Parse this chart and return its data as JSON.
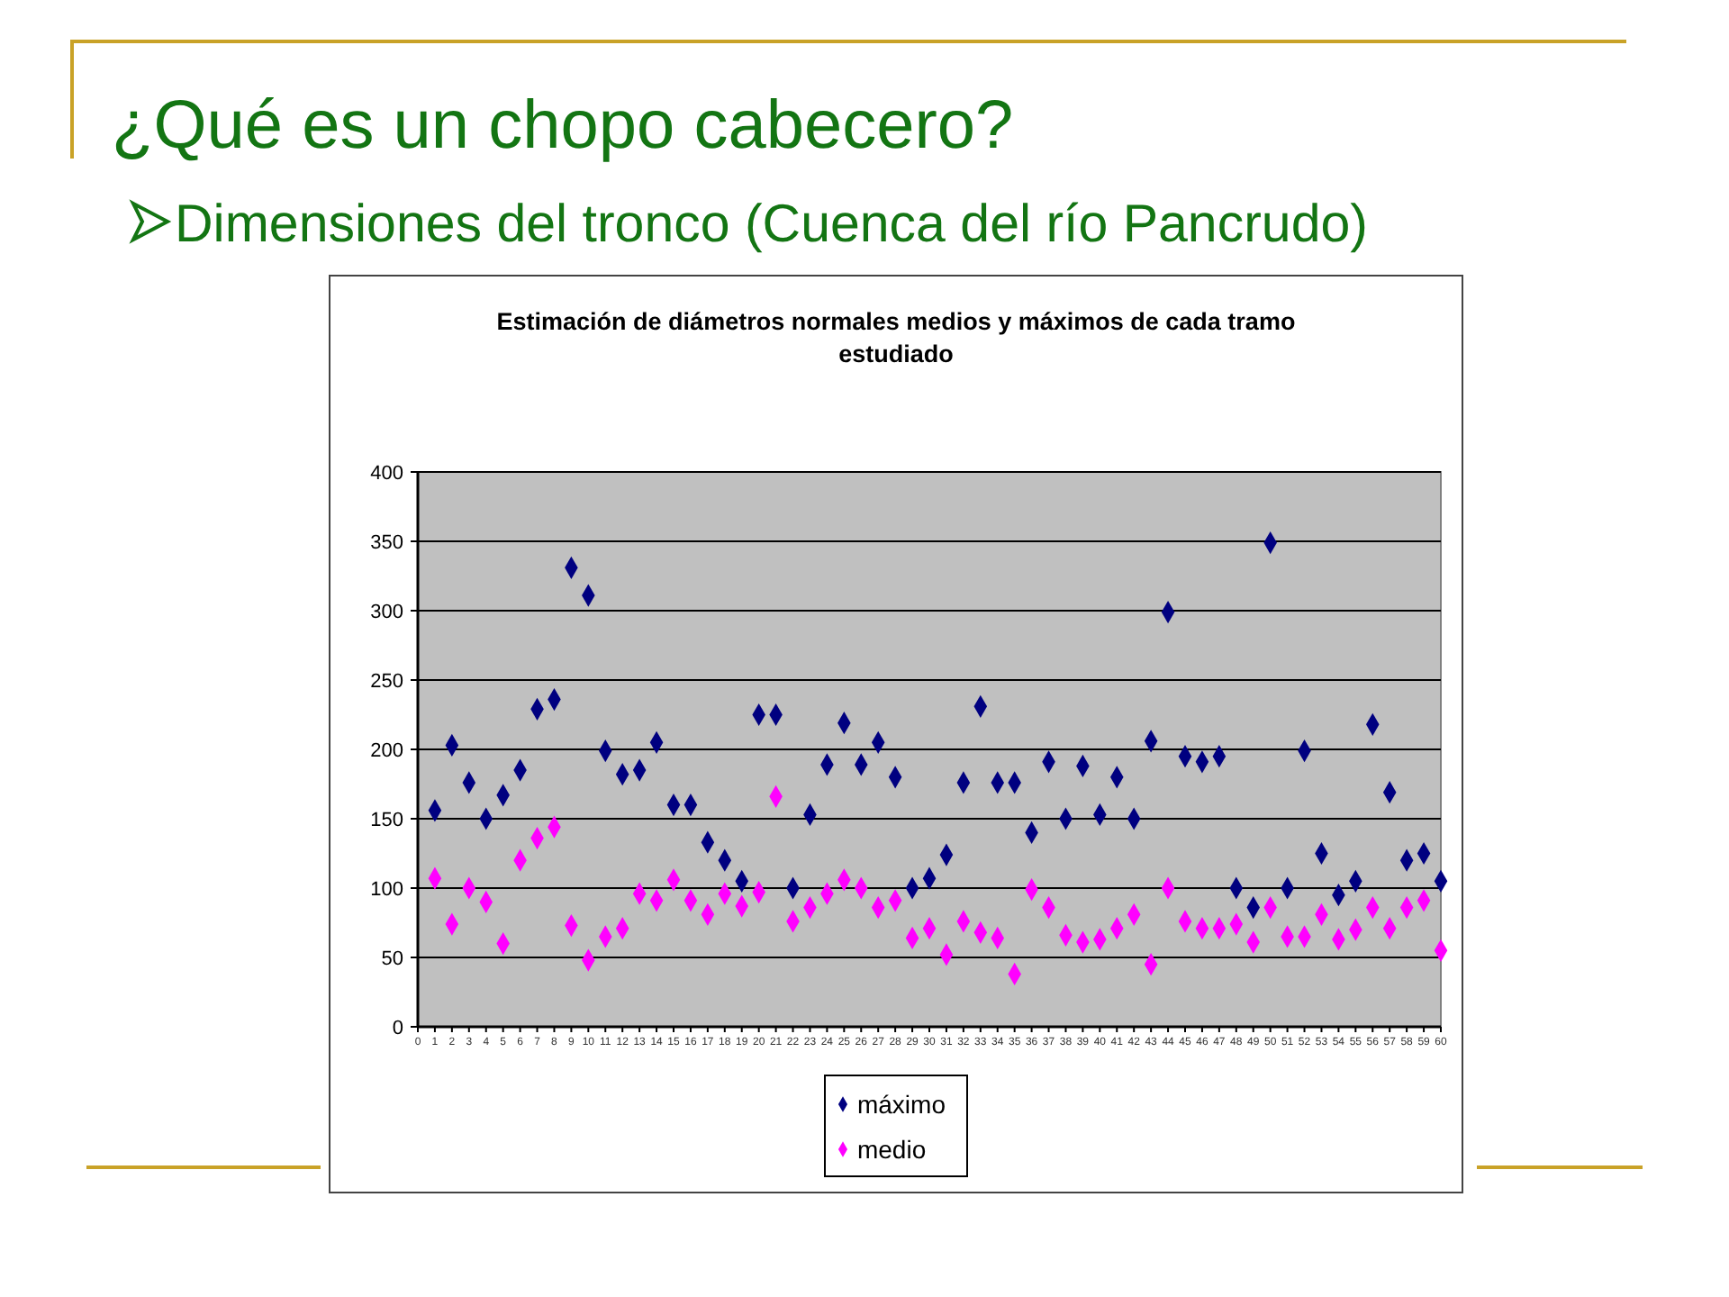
{
  "chart_data": {
    "type": "scatter",
    "title": "Estimación de diámetros normales medios y máximos de cada tramo estudiado",
    "annotations": [
      "¿Qué es un chopo cabecero?",
      "Dimensiones del tronco (Cuenca del río Pancrudo)"
    ],
    "x": [
      1,
      2,
      3,
      4,
      5,
      6,
      7,
      8,
      9,
      10,
      11,
      12,
      13,
      14,
      15,
      16,
      17,
      18,
      19,
      20,
      21,
      22,
      23,
      24,
      25,
      26,
      27,
      28,
      29,
      30,
      31,
      32,
      33,
      34,
      35,
      36,
      37,
      38,
      39,
      40,
      41,
      42,
      43,
      44,
      45,
      46,
      47,
      48,
      49,
      50,
      51,
      52,
      53,
      54,
      55,
      56,
      57,
      58,
      59,
      60
    ],
    "series": [
      {
        "name": "máximo",
        "color": "#000080",
        "values": [
          156,
          203,
          176,
          150,
          167,
          185,
          229,
          236,
          331,
          311,
          199,
          182,
          185,
          205,
          160,
          160,
          133,
          120,
          105,
          225,
          225,
          100,
          153,
          189,
          219,
          189,
          205,
          180,
          100,
          107,
          124,
          176,
          231,
          176,
          176,
          140,
          191,
          150,
          188,
          153,
          180,
          150,
          206,
          299,
          195,
          191,
          195,
          100,
          86,
          349,
          100,
          199,
          125,
          95,
          105,
          218,
          169,
          120,
          125,
          105
        ]
      },
      {
        "name": "medio",
        "color": "#ff00ff",
        "values": [
          107,
          74,
          100,
          90,
          60,
          120,
          136,
          144,
          73,
          48,
          65,
          71,
          96,
          91,
          106,
          91,
          81,
          96,
          87,
          97,
          166,
          76,
          86,
          96,
          106,
          100,
          86,
          91,
          64,
          71,
          52,
          76,
          68,
          64,
          38,
          99,
          86,
          66,
          61,
          63,
          71,
          81,
          45,
          100,
          76,
          71,
          71,
          74,
          61,
          86,
          65,
          65,
          81,
          63,
          70,
          86,
          71,
          86,
          91,
          55
        ]
      }
    ],
    "xlim": [
      0,
      60
    ],
    "xticks": [
      0,
      1,
      2,
      3,
      4,
      5,
      6,
      7,
      8,
      9,
      10,
      11,
      12,
      13,
      14,
      15,
      16,
      17,
      18,
      19,
      20,
      21,
      22,
      23,
      24,
      25,
      26,
      27,
      28,
      29,
      30,
      31,
      32,
      33,
      34,
      35,
      36,
      37,
      38,
      39,
      40,
      41,
      42,
      43,
      44,
      45,
      46,
      47,
      48,
      49,
      50,
      51,
      52,
      53,
      54,
      55,
      56,
      57,
      58,
      59,
      60
    ],
    "ylim": [
      0,
      400
    ],
    "yticks": [
      0,
      50,
      100,
      150,
      200,
      250,
      300,
      350,
      400
    ],
    "grid": "y",
    "legend": "bottom",
    "marker": "diamond"
  }
}
